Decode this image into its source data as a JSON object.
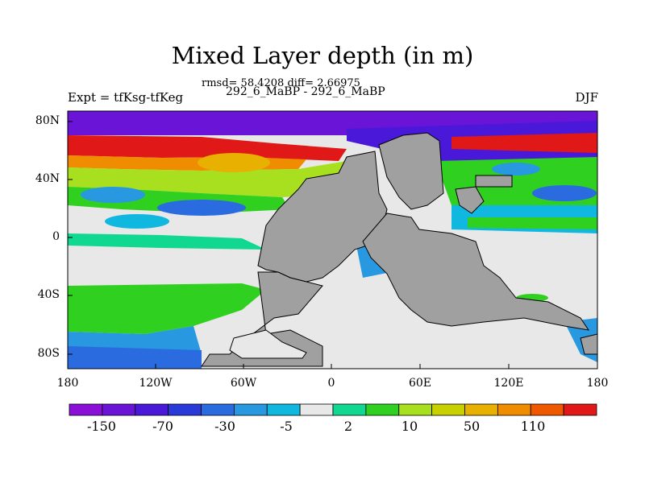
{
  "title": "Mixed Layer depth (in m)",
  "stats": "rmsd= 58.4208 diff= 2.66975",
  "subtitle": "292_6_MaBP - 292_6_MaBP",
  "left_label": "Expt = tfKsg-tfKeg",
  "season": "DJF",
  "lat_ticks": [
    "80N",
    "40N",
    "0",
    "40S",
    "80S"
  ],
  "lon_ticks": [
    "180",
    "120W",
    "60W",
    "0",
    "60E",
    "120E",
    "180"
  ],
  "colorbar": {
    "labels": [
      "-150",
      "-70",
      "-30",
      "-5",
      "2",
      "10",
      "50",
      "110"
    ],
    "colors": [
      "#8a10d8",
      "#6a14d8",
      "#4a18d8",
      "#2a3ad8",
      "#2a6ce0",
      "#2898e0",
      "#10b8e0",
      "#e8e8e8",
      "#10d890",
      "#30d020",
      "#a8e020",
      "#c8d000",
      "#e8b000",
      "#f08c00",
      "#f05800",
      "#e01818"
    ]
  }
}
